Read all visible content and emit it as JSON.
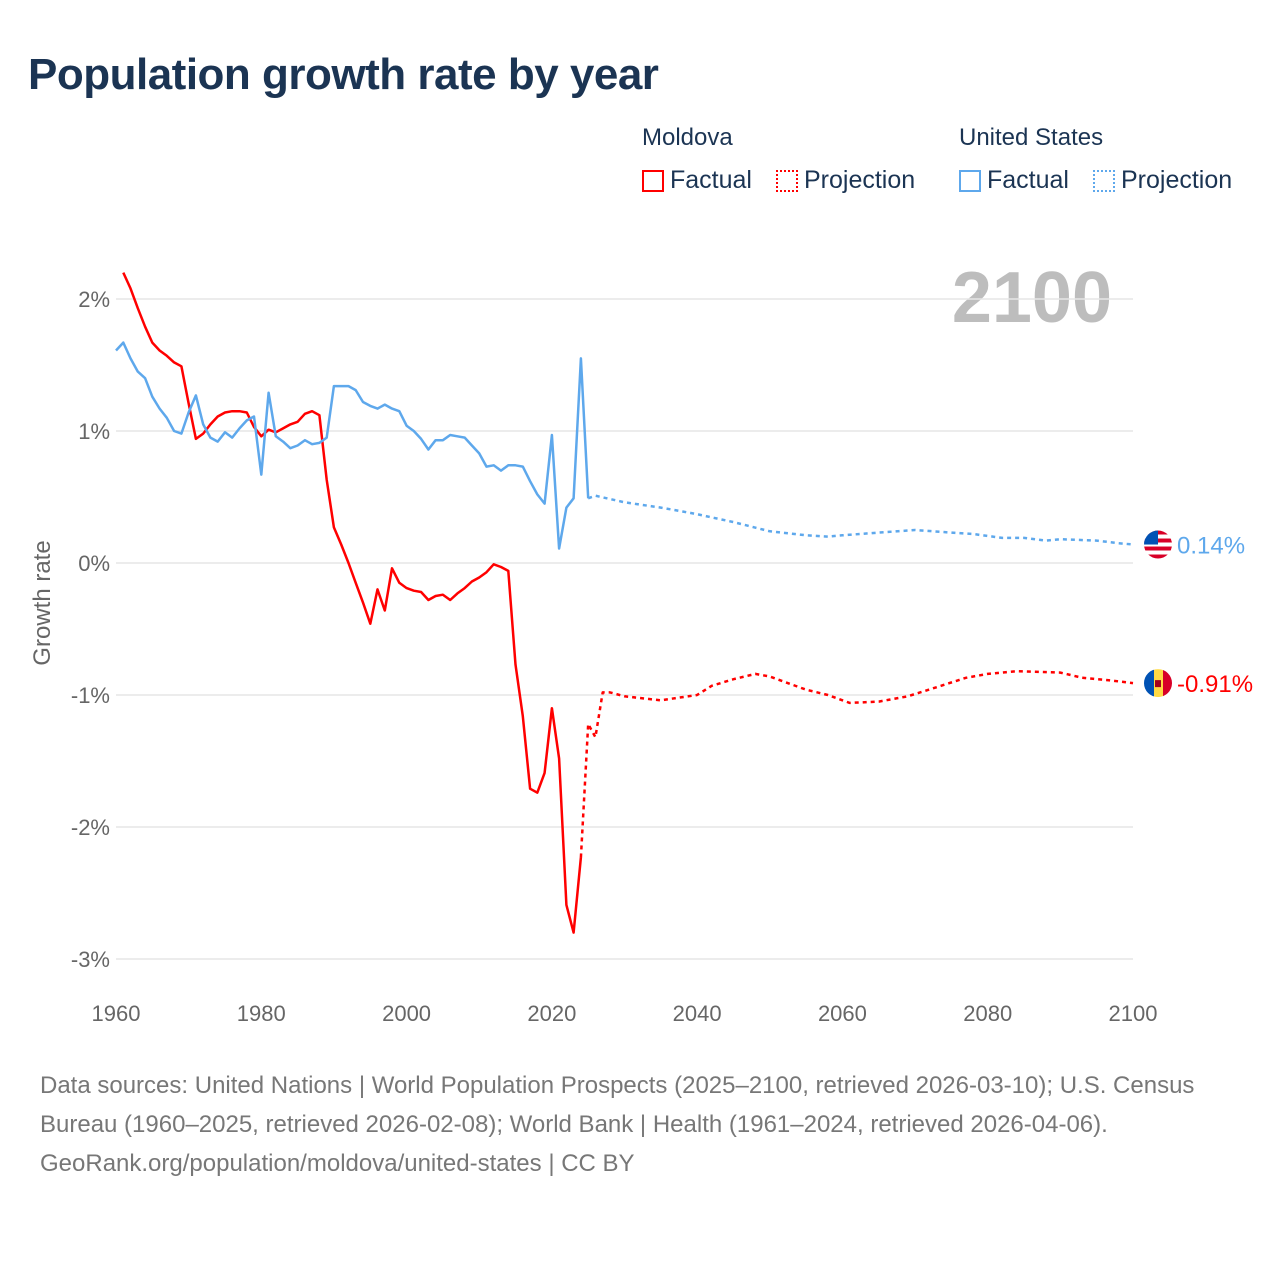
{
  "title": "Population growth rate by year",
  "legend": {
    "groups": [
      {
        "name": "Moldova",
        "color": "#ff0000",
        "items": [
          "Factual",
          "Projection"
        ]
      },
      {
        "name": "United States",
        "color": "#5ea8ec",
        "items": [
          "Factual",
          "Projection"
        ]
      }
    ]
  },
  "year_label": "2100",
  "footer": {
    "sources": "Data sources: United Nations | World Population Prospects (2025–2100, retrieved 2026-03-10); U.S. Census Bureau (1960–2025, retrieved 2026-02-08); World Bank | Health (1961–2024, retrieved 2026-04-06).",
    "credit": "GeoRank.org/population/moldova/united-states | CC BY"
  },
  "chart_data": {
    "type": "line",
    "title": "Population growth rate by year",
    "xlabel": "",
    "ylabel": "Growth rate",
    "xlim": [
      1960,
      2100
    ],
    "ylim": [
      -3.2,
      2.5
    ],
    "xticks": [
      1960,
      1980,
      2000,
      2020,
      2040,
      2060,
      2080,
      2100
    ],
    "xtick_labels": [
      "1960",
      "1980",
      "2000",
      "2020",
      "2040",
      "2060",
      "2080",
      "2100"
    ],
    "yticks": [
      2,
      1,
      0,
      -1,
      -2,
      -3
    ],
    "ytick_labels": [
      "2%",
      "1%",
      "0%",
      "-1%",
      "-2%",
      "-3%"
    ],
    "grid": true,
    "legend_position": "top-right",
    "series": [
      {
        "name": "Moldova",
        "kind": "Factual",
        "color": "#ff0000",
        "end_label": "-0.91%",
        "x": [
          1961,
          1962,
          1963,
          1964,
          1965,
          1966,
          1967,
          1968,
          1969,
          1970,
          1971,
          1972,
          1973,
          1974,
          1975,
          1976,
          1977,
          1978,
          1979,
          1980,
          1981,
          1982,
          1983,
          1984,
          1985,
          1986,
          1987,
          1988,
          1989,
          1990,
          1991,
          1992,
          1993,
          1994,
          1995,
          1996,
          1997,
          1998,
          1999,
          2000,
          2001,
          2002,
          2003,
          2004,
          2005,
          2006,
          2007,
          2008,
          2009,
          2010,
          2011,
          2012,
          2013,
          2014,
          2015,
          2016,
          2017,
          2018,
          2019,
          2020,
          2021,
          2022,
          2023,
          2024
        ],
        "y": [
          2.2,
          2.08,
          1.93,
          1.79,
          1.67,
          1.61,
          1.57,
          1.52,
          1.49,
          1.21,
          0.94,
          0.98,
          1.05,
          1.11,
          1.14,
          1.15,
          1.15,
          1.14,
          1.03,
          0.96,
          1.01,
          0.99,
          1.02,
          1.05,
          1.07,
          1.13,
          1.15,
          1.12,
          0.63,
          0.27,
          0.14,
          0.0,
          -0.15,
          -0.3,
          -0.46,
          -0.2,
          -0.36,
          -0.04,
          -0.15,
          -0.19,
          -0.21,
          -0.22,
          -0.28,
          -0.25,
          -0.24,
          -0.28,
          -0.23,
          -0.19,
          -0.14,
          -0.11,
          -0.07,
          -0.01,
          -0.03,
          -0.06,
          -0.77,
          -1.16,
          -1.71,
          -1.74,
          -1.59,
          -1.1,
          -1.48,
          -2.59,
          -2.8,
          -2.23
        ]
      },
      {
        "name": "Moldova",
        "kind": "Projection",
        "color": "#ff0000",
        "x": [
          2024,
          2025,
          2026,
          2027,
          2028,
          2030,
          2035,
          2040,
          2042,
          2045,
          2048,
          2050,
          2055,
          2058,
          2061,
          2065,
          2069,
          2073,
          2077,
          2080,
          2084,
          2090,
          2093,
          2097,
          2100
        ],
        "y": [
          -2.23,
          -1.22,
          -1.32,
          -0.98,
          -0.98,
          -1.01,
          -1.04,
          -1.0,
          -0.93,
          -0.88,
          -0.84,
          -0.86,
          -0.96,
          -1.0,
          -1.06,
          -1.05,
          -1.01,
          -0.94,
          -0.87,
          -0.84,
          -0.82,
          -0.83,
          -0.87,
          -0.89,
          -0.91
        ]
      },
      {
        "name": "United States",
        "kind": "Factual",
        "color": "#5ea8ec",
        "end_label": "0.14%",
        "x": [
          1960,
          1961,
          1962,
          1963,
          1964,
          1965,
          1966,
          1967,
          1968,
          1969,
          1970,
          1971,
          1972,
          1973,
          1974,
          1975,
          1976,
          1977,
          1978,
          1979,
          1980,
          1981,
          1982,
          1983,
          1984,
          1985,
          1986,
          1987,
          1988,
          1989,
          1990,
          1991,
          1992,
          1993,
          1994,
          1995,
          1996,
          1997,
          1998,
          1999,
          2000,
          2001,
          2002,
          2003,
          2004,
          2005,
          2006,
          2007,
          2008,
          2009,
          2010,
          2011,
          2012,
          2013,
          2014,
          2015,
          2016,
          2017,
          2018,
          2019,
          2020,
          2021,
          2022,
          2023,
          2024,
          2025
        ],
        "y": [
          1.61,
          1.67,
          1.55,
          1.45,
          1.4,
          1.26,
          1.17,
          1.1,
          1.0,
          0.98,
          1.14,
          1.27,
          1.05,
          0.95,
          0.92,
          0.99,
          0.95,
          1.02,
          1.08,
          1.11,
          0.67,
          1.29,
          0.96,
          0.92,
          0.87,
          0.89,
          0.93,
          0.9,
          0.91,
          0.95,
          1.34,
          1.34,
          1.34,
          1.31,
          1.22,
          1.19,
          1.17,
          1.2,
          1.17,
          1.15,
          1.04,
          1.0,
          0.94,
          0.86,
          0.93,
          0.93,
          0.97,
          0.96,
          0.95,
          0.89,
          0.83,
          0.73,
          0.74,
          0.7,
          0.74,
          0.74,
          0.73,
          0.62,
          0.52,
          0.45,
          0.97,
          0.11,
          0.42,
          0.49,
          1.55,
          0.49
        ]
      },
      {
        "name": "United States",
        "kind": "Projection",
        "color": "#5ea8ec",
        "x": [
          2025,
          2026,
          2030,
          2035,
          2038,
          2040,
          2045,
          2050,
          2055,
          2058,
          2060,
          2065,
          2070,
          2075,
          2078,
          2082,
          2085,
          2088,
          2090,
          2095,
          2098,
          2100
        ],
        "y": [
          0.49,
          0.51,
          0.46,
          0.42,
          0.39,
          0.37,
          0.31,
          0.24,
          0.21,
          0.2,
          0.21,
          0.23,
          0.25,
          0.23,
          0.22,
          0.19,
          0.19,
          0.17,
          0.18,
          0.17,
          0.15,
          0.14
        ]
      }
    ]
  }
}
